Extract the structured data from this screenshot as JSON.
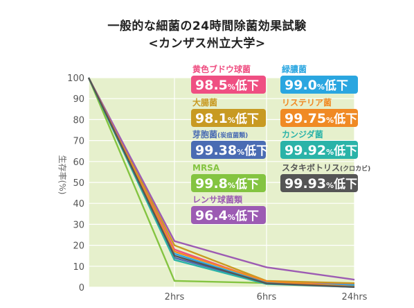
{
  "title": "一般的な細菌の24時間除菌効果試験",
  "subtitle": "<カンザス州立大学>",
  "chart_data": {
    "type": "line",
    "categories": [
      "",
      "2hrs",
      "6hrs",
      "24hrs"
    ],
    "ylabel": "生存率(%)",
    "ylim": [
      0,
      100
    ],
    "yticks": [
      0,
      10,
      20,
      30,
      40,
      50,
      60,
      70,
      80,
      90,
      100
    ],
    "grid": true,
    "series": [
      {
        "name": "黄色ブドウ球菌",
        "reduction": "98.5",
        "color": "#ef4f82",
        "values": [
          100,
          18,
          2.5,
          1.5
        ]
      },
      {
        "name": "大腸菌",
        "reduction": "98.1",
        "color": "#c89a22",
        "values": [
          100,
          20,
          3,
          1.9
        ]
      },
      {
        "name": "芽胞菌",
        "sub": "(炭疽菌類)",
        "reduction": "99.38",
        "color": "#4a6cb3",
        "values": [
          100,
          14,
          2,
          0.6
        ]
      },
      {
        "name": "MRSA",
        "reduction": "99.8",
        "color": "#84c441",
        "values": [
          100,
          3,
          2,
          0.2
        ]
      },
      {
        "name": "レンサ球菌類",
        "reduction": "96.4",
        "color": "#9c5bb3",
        "values": [
          100,
          22,
          9.5,
          3.6
        ]
      },
      {
        "name": "緑膿菌",
        "reduction": "99.0",
        "color": "#2aa6e0",
        "values": [
          100,
          16,
          2,
          1.0
        ]
      },
      {
        "name": "リステリア菌",
        "reduction": "99.75",
        "color": "#f08a24",
        "values": [
          100,
          17,
          2.8,
          0.25
        ]
      },
      {
        "name": "カンジダ菌",
        "reduction": "99.92",
        "color": "#2ab3a8",
        "values": [
          100,
          13,
          1.5,
          0.08
        ]
      },
      {
        "name": "スタキボトリス",
        "sub": "(クロカビ)",
        "reduction": "99.93",
        "color": "#555555",
        "values": [
          100,
          15,
          1.8,
          0.07
        ]
      }
    ],
    "pct_symbol": "%",
    "suffix": "低下"
  }
}
